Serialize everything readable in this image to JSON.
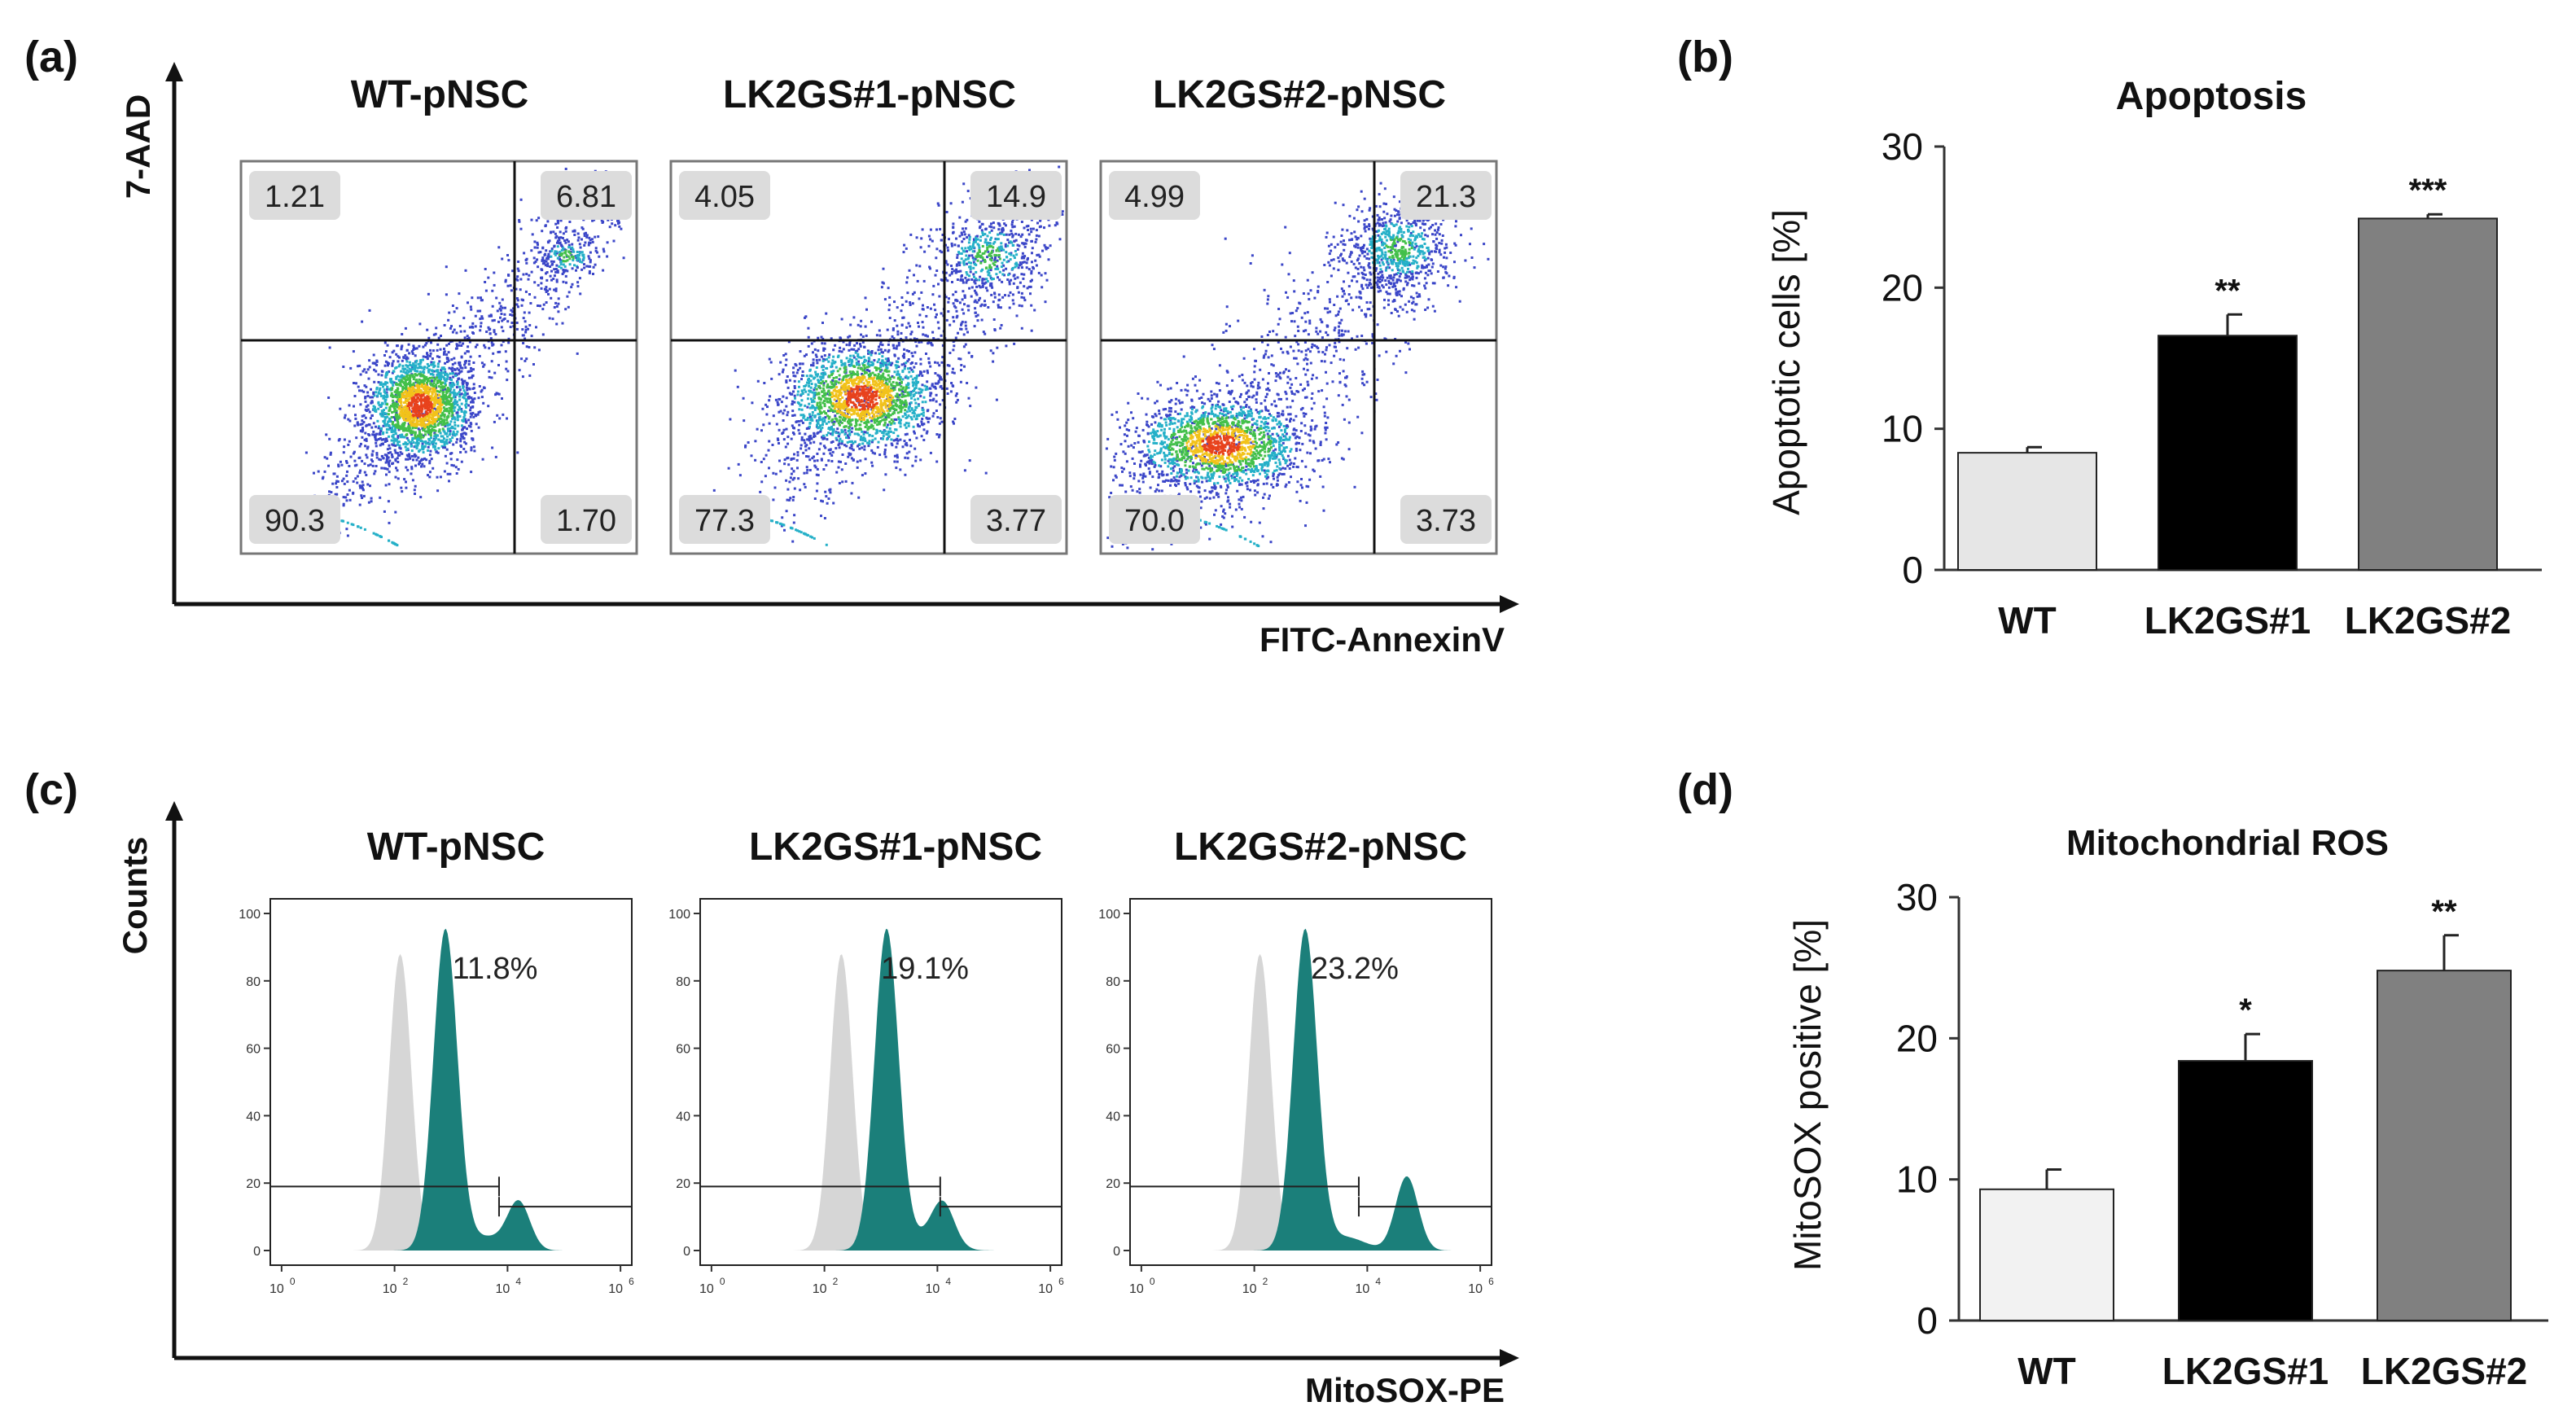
{
  "panel_labels": [
    "(a)",
    "(b)",
    "(c)",
    "(d)"
  ],
  "colors": {
    "wt_bar": "#e6e6e6",
    "lk1_bar": "#000000",
    "lk2_bar": "#808080",
    "wt_bar_d": "#f2f2f2",
    "histogram_fill": "#1b7f7a",
    "control_fill": "#d6d6d6"
  },
  "chart_data": [
    {
      "id": "a",
      "type": "scatter",
      "title": "",
      "xlabel": "FITC-AnnexinV",
      "ylabel": "7-AAD",
      "note": "flow cytometry density dot plots with quadrant gates; values are percentages per quadrant",
      "plots": [
        {
          "name": "WT-pNSC",
          "quadrants": {
            "top_left": "1.21",
            "top_right": "6.81",
            "bottom_left": "90.3",
            "bottom_right": "1.70"
          }
        },
        {
          "name": "LK2GS#1-pNSC",
          "quadrants": {
            "top_left": "4.05",
            "top_right": "14.9",
            "bottom_left": "77.3",
            "bottom_right": "3.77"
          }
        },
        {
          "name": "LK2GS#2-pNSC",
          "quadrants": {
            "top_left": "4.99",
            "top_right": "21.3",
            "bottom_left": "70.0",
            "bottom_right": "3.73"
          }
        }
      ]
    },
    {
      "id": "b",
      "type": "bar",
      "title": "Apoptosis",
      "ylabel": "Apoptotic cells [%]",
      "categories": [
        "WT",
        "LK2GS#1",
        "LK2GS#2"
      ],
      "values": [
        8.3,
        16.6,
        24.9
      ],
      "errors": [
        0.4,
        1.5,
        0.3
      ],
      "significance": [
        "",
        "**",
        "***"
      ],
      "ylim": [
        0,
        30
      ],
      "yticks": [
        0,
        10,
        20,
        30
      ]
    },
    {
      "id": "c",
      "type": "area",
      "title": "",
      "xlabel": "MitoSOX-PE",
      "ylabel": "Counts",
      "note": "flow cytometry histograms, teal = MitoSOX stained, grey = unstained control; log x-axis",
      "x_ticks": [
        "10",
        "10",
        "10",
        "10"
      ],
      "x_tick_exponents": [
        "0",
        "2",
        "4",
        "6"
      ],
      "y_ticks": [
        "0",
        "20",
        "40",
        "60",
        "80",
        "100"
      ],
      "plots": [
        {
          "name": "WT-pNSC",
          "percent": "11.8%",
          "main_peak_log": 2.9,
          "second_peak_log": 4.2,
          "second_peak_height": 14
        },
        {
          "name": "LK2GS#1-pNSC",
          "percent": "19.1%",
          "main_peak_log": 3.1,
          "second_peak_log": 4.1,
          "second_peak_height": 12
        },
        {
          "name": "LK2GS#2-pNSC",
          "percent": "23.2%",
          "main_peak_log": 2.9,
          "second_peak_log": 4.7,
          "second_peak_height": 22
        }
      ]
    },
    {
      "id": "d",
      "type": "bar",
      "title": "Mitochondrial ROS",
      "ylabel": "MitoSOX positive [%]",
      "categories": [
        "WT",
        "LK2GS#1",
        "LK2GS#2"
      ],
      "values": [
        9.3,
        18.4,
        24.8
      ],
      "errors": [
        1.4,
        1.9,
        2.5
      ],
      "significance": [
        "",
        "*",
        "**"
      ],
      "ylim": [
        0,
        30
      ],
      "yticks": [
        0,
        10,
        20,
        30
      ]
    }
  ]
}
